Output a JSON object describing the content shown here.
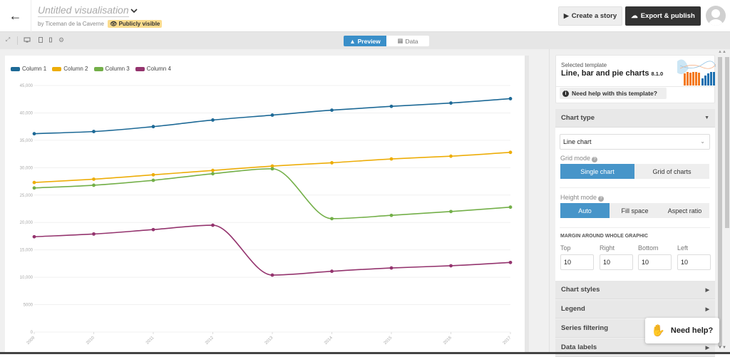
{
  "header": {
    "back_icon": "arrow-left-icon",
    "title": "Untitled visualisation",
    "byline": "by Ticeman de la Caverne",
    "visibility": "Publicly visible",
    "create_story": "Create a story",
    "export_publish": "Export & publish"
  },
  "toolbar": {
    "icons": [
      "expand-icon",
      "desktop-icon",
      "tablet-icon",
      "mobile-icon",
      "gear-icon"
    ],
    "tabs": [
      {
        "label": "Preview",
        "active": true
      },
      {
        "label": "Data",
        "active": false
      }
    ]
  },
  "chart_data": {
    "type": "line",
    "title": "",
    "xlabel": "",
    "ylabel": "",
    "x": [
      "2009",
      "2010",
      "2011",
      "2012",
      "2013",
      "2014",
      "2015",
      "2016",
      "2017"
    ],
    "yticks": [
      "0",
      "5000",
      "10,000",
      "15,000",
      "20,000",
      "25,000",
      "30,000",
      "35,000",
      "40,000",
      "45,000"
    ],
    "ylim": [
      0,
      45000
    ],
    "grid": true,
    "legend_position": "top-left",
    "series": [
      {
        "name": "Column 1",
        "color": "#1d6996",
        "values": [
          36200,
          36600,
          37500,
          38700,
          39600,
          40500,
          41200,
          41800,
          42600
        ]
      },
      {
        "name": "Column 2",
        "color": "#edad08",
        "values": [
          27300,
          27900,
          28700,
          29500,
          30300,
          30900,
          31600,
          32100,
          32800
        ]
      },
      {
        "name": "Column 3",
        "color": "#73af48",
        "values": [
          26300,
          26800,
          27700,
          28900,
          29800,
          20700,
          21300,
          22000,
          22800
        ]
      },
      {
        "name": "Column 4",
        "color": "#94346e",
        "values": [
          17400,
          17900,
          18700,
          19500,
          10400,
          11100,
          11700,
          12100,
          12700
        ]
      }
    ]
  },
  "panel": {
    "template": {
      "label": "Selected template",
      "name": "Line, bar and pie charts",
      "version": "8.1.0",
      "help": "Need help with this template?"
    },
    "chart_type": {
      "header": "Chart type",
      "selected": "Line chart",
      "grid_mode_label": "Grid mode",
      "grid_mode_options": [
        "Single chart",
        "Grid of charts"
      ],
      "height_mode_label": "Height mode",
      "height_mode_options": [
        "Auto",
        "Fill space",
        "Aspect ratio"
      ],
      "margin_label": "MARGIN AROUND WHOLE GRAPHIC",
      "margins": [
        {
          "label": "Top",
          "value": "10"
        },
        {
          "label": "Right",
          "value": "10"
        },
        {
          "label": "Bottom",
          "value": "10"
        },
        {
          "label": "Left",
          "value": "10"
        }
      ]
    },
    "sections": [
      "Chart styles",
      "Legend",
      "Series filtering",
      "Data labels"
    ],
    "need_help": "Need help?"
  }
}
